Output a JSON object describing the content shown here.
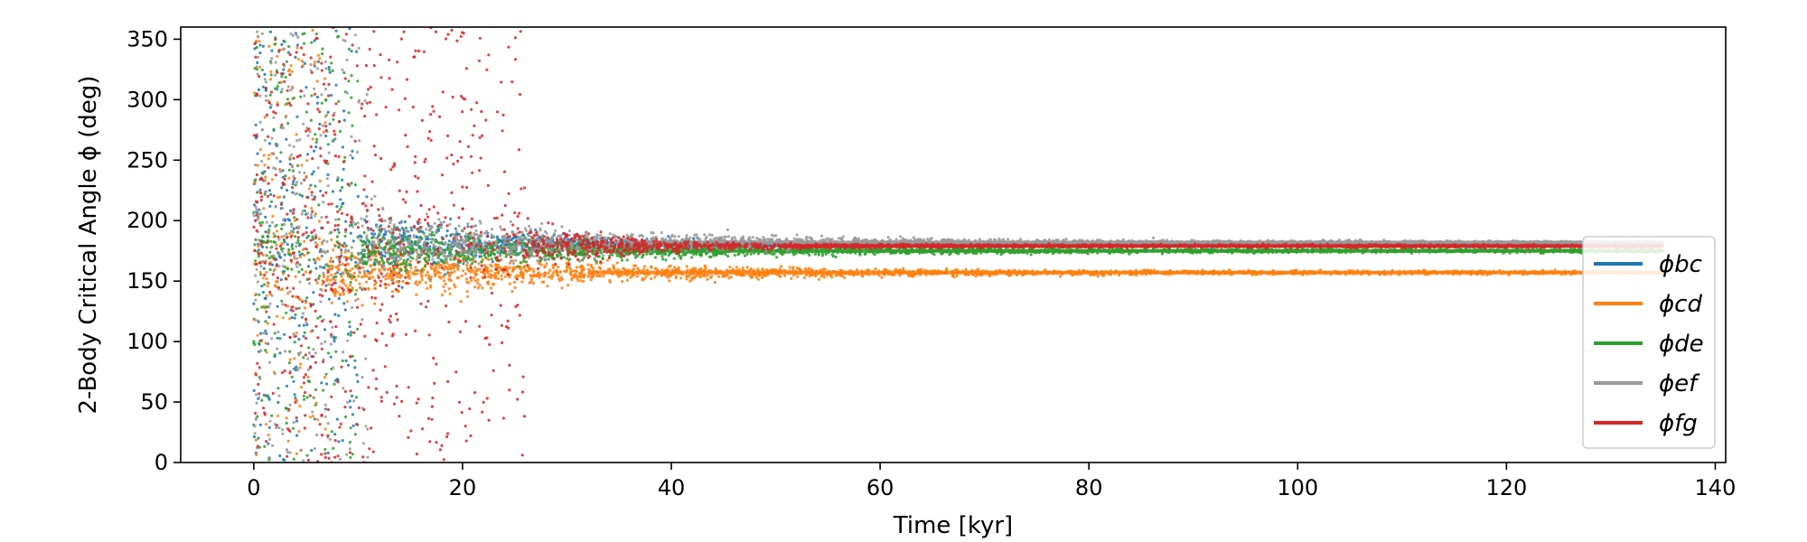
{
  "chart_data": {
    "type": "scatter",
    "title": "",
    "xlabel": "Time [kyr]",
    "ylabel": "2-Body Critical Angle ϕ (deg)",
    "xlim": [
      -7,
      141
    ],
    "ylim": [
      0,
      360
    ],
    "x_ticks": [
      0,
      20,
      40,
      60,
      80,
      100,
      120,
      140
    ],
    "y_ticks": [
      0,
      50,
      100,
      150,
      200,
      250,
      300,
      350
    ],
    "grid": false,
    "legend_position": "right",
    "series": [
      {
        "name": "ϕbc",
        "color": "#1f77b4",
        "scatter_end_kyr": 10,
        "early_spread_deg": 40,
        "spread_decay_kyr": 12,
        "equilibrium_deg": 180,
        "x_end_kyr": 135
      },
      {
        "name": "ϕcd",
        "color": "#ff7f0e",
        "scatter_end_kyr": 7,
        "early_spread_deg": 25,
        "spread_decay_kyr": 20,
        "equilibrium_deg": 157,
        "x_end_kyr": 135
      },
      {
        "name": "ϕde",
        "color": "#2ca02c",
        "scatter_end_kyr": 10,
        "early_spread_deg": 20,
        "spread_decay_kyr": 20,
        "equilibrium_deg": 175,
        "x_end_kyr": 135
      },
      {
        "name": "ϕef",
        "color": "#999999",
        "scatter_end_kyr": 11,
        "early_spread_deg": 30,
        "spread_decay_kyr": 20,
        "equilibrium_deg": 182,
        "x_end_kyr": 135
      },
      {
        "name": "ϕfg",
        "color": "#d62728",
        "scatter_end_kyr": 26,
        "early_spread_deg": 60,
        "spread_decay_kyr": 8,
        "equilibrium_deg": 179,
        "x_end_kyr": 135
      }
    ]
  }
}
